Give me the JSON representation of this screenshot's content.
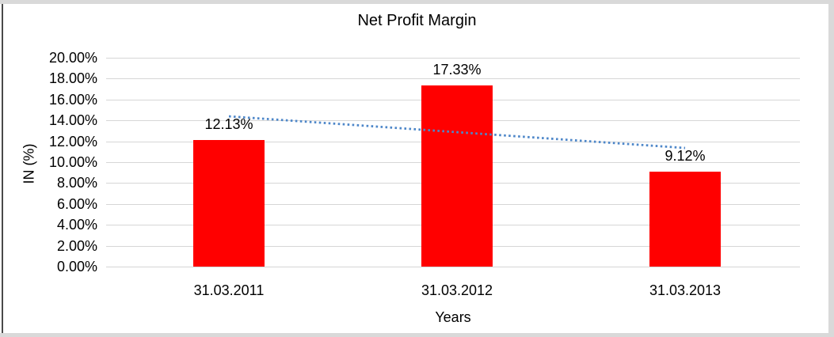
{
  "chart_data": {
    "type": "bar",
    "title": "Net Profit Margin",
    "categories": [
      "31.03.2011",
      "31.03.2012",
      "31.03.2013"
    ],
    "values": [
      12.13,
      17.33,
      9.12
    ],
    "data_labels": [
      "12.13%",
      "17.33%",
      "9.12%"
    ],
    "xlabel": "Years",
    "ylabel": "IN (%)",
    "ylim": [
      0,
      20
    ],
    "y_ticks": {
      "values": [
        0,
        2,
        4,
        6,
        8,
        10,
        12,
        14,
        16,
        18,
        20
      ],
      "labels": [
        "0.00%",
        "2.00%",
        "4.00%",
        "6.00%",
        "8.00%",
        "10.00%",
        "12.00%",
        "14.00%",
        "16.00%",
        "18.00%",
        "20.00%"
      ]
    },
    "grid": true,
    "legend": "none",
    "colors": {
      "bar": "#ff0000",
      "trendline": "#4e87c9",
      "gridline": "#d6d6d6",
      "text": "#000000"
    },
    "trendline": {
      "type": "linear",
      "style": "dotted",
      "start_value": 14.39,
      "end_value": 11.36
    }
  }
}
